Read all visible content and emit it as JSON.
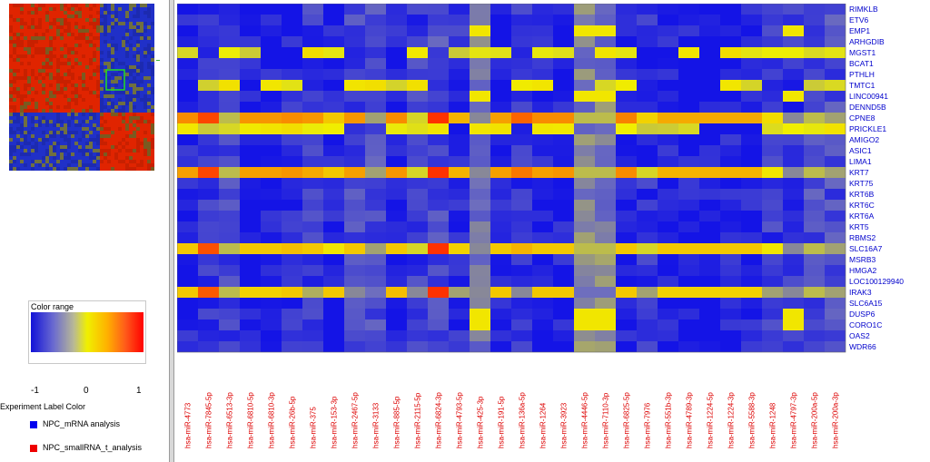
{
  "legend": {
    "color_range_title": "Color range",
    "ticks": [
      "-1",
      "0",
      "1"
    ],
    "experiment_label_title": "Experiment Label Color",
    "experiments": [
      {
        "label": "NPC_mRNA analysis",
        "color": "#0000ee"
      },
      {
        "label": "NPC_smallRNA_t_analysis",
        "color": "#ee0000"
      }
    ]
  },
  "colors": {
    "low": "#1414e6",
    "mid": "#f0f000",
    "high": "#ff2000",
    "row_label": "#0000cc",
    "col_label": "#dd0000",
    "selection_box": "#22dd22"
  },
  "chart_data": {
    "type": "heatmap",
    "value_range": [
      -1,
      1
    ],
    "rows": [
      "RIMKLB",
      "ETV6",
      "EMP1",
      "ARHGDIB",
      "MGST1",
      "BCAT1",
      "PTHLH",
      "TMTC1",
      "LINC00941",
      "DENND5B",
      "CPNE8",
      "PRICKLE1",
      "AMIGO2",
      "ASIC1",
      "LIMA1",
      "KRT7",
      "KRT75",
      "KRT6B",
      "KRT6C",
      "KRT6A",
      "KRT5",
      "RBMS2",
      "SLC16A7",
      "MSRB3",
      "HMGA2",
      "LOC100129940",
      "IRAK3",
      "SLC6A15",
      "DUSP6",
      "CORO1C",
      "OAS2",
      "WDR66"
    ],
    "columns": [
      "hsa-miR-4773",
      "hsa-miR-7845-5p",
      "hsa-miR-6513-3p",
      "hsa-miR-6810-5p",
      "hsa-miR-6810-3p",
      "hsa-miR-26b-5p",
      "hsa-miR-375",
      "hsa-miR-153-3p",
      "hsa-miR-2467-5p",
      "hsa-miR-3133",
      "hsa-miR-885-5p",
      "hsa-miR-2115-5p",
      "hsa-miR-6824-3p",
      "hsa-miR-4793-5p",
      "hsa-miR-425-3p",
      "hsa-miR-191-5p",
      "hsa-miR-136a-5p",
      "hsa-miR-1264",
      "hsa-miR-3923",
      "hsa-miR-4446-5p",
      "hsa-miR-7110-3p",
      "hsa-miR-6825-5p",
      "hsa-miR-7976",
      "hsa-miR-551b-3p",
      "hsa-miR-4789-3p",
      "hsa-miR-1224-5p",
      "hsa-miR-1224-3p",
      "hsa-miR-5588-3p",
      "hsa-miR-1248",
      "hsa-miR-4797-3p",
      "hsa-miR-200a-5p",
      "hsa-miR-200a-3p"
    ],
    "high_rows": {
      "CPNE8": [
        0.5,
        0.85,
        -0.2,
        0.45,
        0.45,
        0.5,
        0.45,
        0.2,
        0.45,
        -0.3,
        0.5,
        -0.1,
        0.95,
        0.3,
        -0.4,
        0.4,
        0.7,
        0.5,
        0.5,
        -0.2,
        -0.2,
        0.55,
        0.15,
        0.35,
        0.35,
        0.35,
        0.35,
        0.35,
        0.1,
        -0.4,
        -0.2,
        -0.3
      ],
      "KRT7": [
        0.4,
        0.85,
        -0.2,
        0.4,
        0.4,
        0.45,
        0.35,
        0.2,
        0.4,
        -0.3,
        0.45,
        -0.1,
        0.95,
        0.3,
        -0.4,
        0.4,
        0.6,
        0.4,
        0.45,
        -0.2,
        -0.2,
        0.5,
        -0.1,
        0.3,
        0.3,
        0.3,
        0.3,
        0.3,
        0.05,
        -0.4,
        -0.2,
        -0.3
      ],
      "SLC16A7": [
        0.2,
        0.8,
        -0.2,
        0.2,
        0.2,
        0.25,
        0.2,
        0.05,
        0.2,
        -0.3,
        0.2,
        -0.1,
        0.95,
        0.15,
        -0.4,
        0.2,
        0.3,
        0.2,
        0.2,
        -0.2,
        -0.2,
        0.2,
        -0.1,
        0.2,
        0.2,
        0.2,
        0.2,
        0.2,
        0.05,
        -0.4,
        -0.2,
        -0.3
      ],
      "IRAK3": [
        0.2,
        0.75,
        -0.2,
        0.15,
        0.15,
        0.2,
        -0.25,
        0.2,
        -0.4,
        -0.5,
        0.25,
        -0.4,
        0.95,
        -0.3,
        -0.4,
        0.2,
        -0.4,
        0.2,
        0.2,
        -0.5,
        -0.5,
        0.2,
        -0.3,
        0.15,
        0.15,
        0.15,
        0.15,
        0.15,
        -0.3,
        -0.4,
        -0.2,
        -0.3
      ]
    }
  }
}
